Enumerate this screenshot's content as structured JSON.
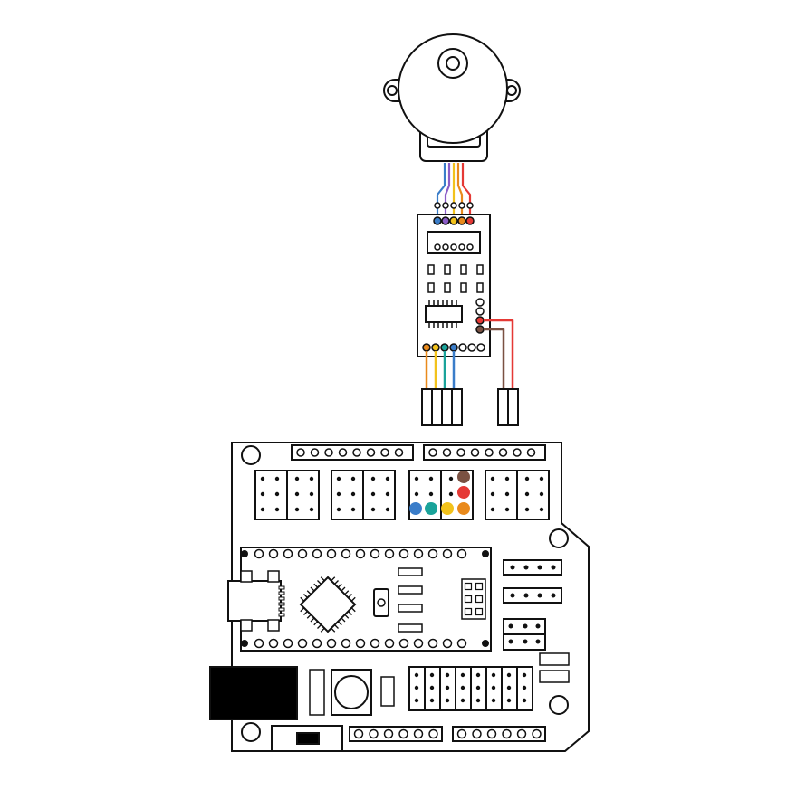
{
  "diagram": {
    "kind": "wiring-illustration",
    "components": {
      "motor": {
        "name": "stepper-motor",
        "wire_count": 5
      },
      "driver": {
        "name": "stepper-driver-board"
      },
      "board": {
        "name": "arduino-nano-expansion-shield"
      }
    },
    "wire_colors": {
      "blue": "#3a7dc9",
      "purple": "#8b5cc7",
      "yellow": "#f2c21b",
      "orange": "#e98a1c",
      "red": "#e53935",
      "brown": "#7a5142",
      "teal": "#1aa39a",
      "black": "#111111"
    },
    "driver_input_pins": [
      "orange",
      "yellow",
      "teal",
      "blue"
    ],
    "driver_power_pins": [
      "red",
      "brown"
    ],
    "shield_header_dots": {
      "top_row": [
        "brown"
      ],
      "middle_row": [
        "red"
      ],
      "bottom_row": [
        "blue",
        "teal",
        "yellow",
        "orange"
      ]
    }
  }
}
